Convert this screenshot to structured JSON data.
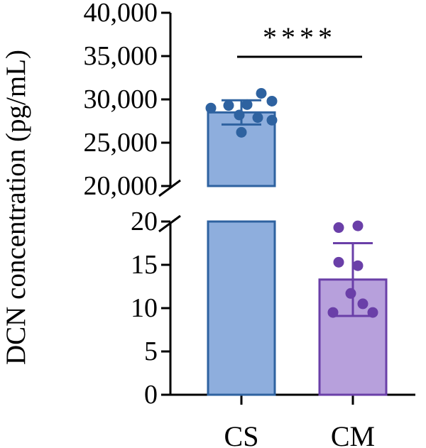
{
  "chart_data": {
    "type": "bar",
    "ylabel": "DCN concentration (pg/mL)",
    "categories": [
      "CS",
      "CM"
    ],
    "axis_break": {
      "lower_range": [
        0,
        20
      ],
      "upper_range": [
        20000,
        40000
      ],
      "lower_ticks": [
        "0",
        "5",
        "10",
        "15",
        "20"
      ],
      "upper_ticks": [
        "20,000",
        "25,000",
        "30,000",
        "35,000",
        "40,000"
      ]
    },
    "series": [
      {
        "category": "CS",
        "mean": 28500,
        "sd": 1400,
        "points": [
          29000,
          29300,
          29400,
          30700,
          29800,
          28200,
          27900,
          27600,
          26200
        ],
        "fill": "#8eaedd",
        "stroke": "#2e62a0",
        "point_color": "#2e62a0"
      },
      {
        "category": "CM",
        "mean": 13.3,
        "sd": 4.2,
        "points": [
          19.3,
          19.5,
          15.3,
          14.9,
          11.7,
          10.5,
          9.5,
          9.5
        ],
        "fill": "#b7a0dc",
        "stroke": "#6a3fa8",
        "point_color": "#6a3fa8"
      }
    ],
    "significance": {
      "label": "****",
      "between": [
        "CS",
        "CM"
      ]
    },
    "grid": false,
    "legend": "none"
  }
}
